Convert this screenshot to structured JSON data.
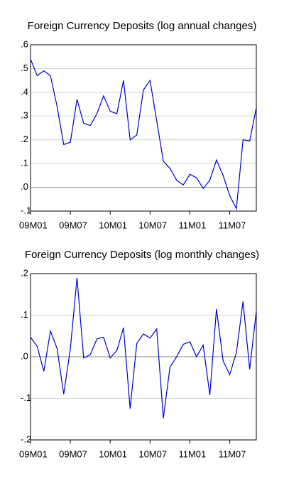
{
  "chart_data": [
    {
      "type": "line",
      "title": "Foreign Currency Deposits (log annual changes)",
      "categories": [
        "09M01",
        null,
        null,
        null,
        null,
        null,
        "09M07",
        null,
        null,
        null,
        null,
        null,
        "10M01",
        null,
        null,
        null,
        null,
        null,
        "10M07",
        null,
        null,
        null,
        null,
        null,
        "11M01",
        null,
        null,
        null,
        null,
        null,
        "11M07",
        null,
        null,
        null,
        null
      ],
      "series": [
        {
          "name": null,
          "color": "#0000cc",
          "values": [
            0.54,
            0.47,
            0.49,
            0.47,
            0.34,
            0.18,
            0.19,
            0.37,
            0.27,
            0.26,
            0.31,
            0.385,
            0.32,
            0.31,
            0.45,
            0.2,
            0.22,
            0.41,
            0.45,
            0.28,
            0.11,
            0.08,
            0.03,
            0.01,
            0.055,
            0.04,
            -0.005,
            0.03,
            0.115,
            0.05,
            -0.035,
            -0.09,
            0.2,
            0.195,
            0.335
          ]
        }
      ],
      "ylim": [
        -0.1,
        0.6
      ],
      "yticks": [
        {
          "value": -0.1,
          "label": "-.1"
        },
        {
          "value": 0,
          "label": ".0"
        },
        {
          "value": 0.1,
          "label": ".1"
        },
        {
          "value": 0.2,
          "label": ".2"
        },
        {
          "value": 0.3,
          "label": ".3"
        },
        {
          "value": 0.4,
          "label": ".4"
        },
        {
          "value": 0.5,
          "label": ".5"
        },
        {
          "value": 0.6,
          "label": ".6"
        }
      ],
      "grid": true
    },
    {
      "type": "line",
      "title": "Foreign Currency Deposits (log monthly changes)",
      "categories": [
        "09M01",
        null,
        null,
        null,
        null,
        null,
        "09M07",
        null,
        null,
        null,
        null,
        null,
        "10M01",
        null,
        null,
        null,
        null,
        null,
        "10M07",
        null,
        null,
        null,
        null,
        null,
        "11M01",
        null,
        null,
        null,
        null,
        null,
        "11M07",
        null,
        null,
        null,
        null
      ],
      "series": [
        {
          "name": null,
          "color": "#0000cc",
          "values": [
            0.047,
            0.025,
            -0.035,
            0.062,
            0.02,
            -0.09,
            0.02,
            0.19,
            -0.003,
            0.005,
            0.043,
            0.047,
            -0.003,
            0.015,
            0.07,
            -0.125,
            0.032,
            0.055,
            0.045,
            0.067,
            -0.148,
            -0.025,
            0,
            0.03,
            0.036,
            0,
            0.028,
            -0.092,
            0.115,
            -0.01,
            -0.043,
            0.01,
            0.133,
            -0.03,
            0.11
          ]
        }
      ],
      "ylim": [
        -0.2,
        0.2
      ],
      "yticks": [
        {
          "value": -0.2,
          "label": "-.2"
        },
        {
          "value": -0.1,
          "label": "-.1"
        },
        {
          "value": 0,
          "label": ".0"
        },
        {
          "value": 0.1,
          "label": ".1"
        },
        {
          "value": 0.2,
          "label": ".2"
        }
      ],
      "grid": true
    }
  ]
}
